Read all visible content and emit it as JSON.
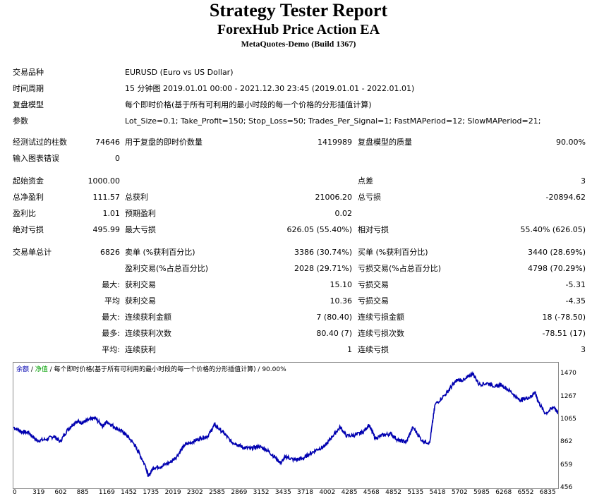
{
  "header": {
    "title": "Strategy Tester Report",
    "subtitle": "ForexHub Price Action EA",
    "build": "MetaQuotes-Demo (Build 1367)"
  },
  "settings": [
    {
      "label": "交易品种",
      "value": "EURUSD (Euro vs US Dollar)"
    },
    {
      "label": "时间周期",
      "value": "15 分钟图 2019.01.01 00:00 - 2021.12.30 23:45 (2019.01.01 - 2022.01.01)"
    },
    {
      "label": "复盘模型",
      "value": "每个即时价格(基于所有可利用的最小时段的每一个价格的分形插值计算)"
    },
    {
      "label": "参数",
      "value": "Lot_Size=0.1; Take_Profit=150; Stop_Loss=50; Trades_Per_Signal=1; FastMAPeriod=12; SlowMAPeriod=21;"
    }
  ],
  "stats": {
    "bars_label": "经测试过的柱数",
    "bars_value": "74646",
    "ticks_label": "用于复盘的即时价数量",
    "ticks_value": "1419989",
    "quality_label": "复盘模型的质量",
    "quality_value": "90.00%",
    "errors_label": "输入图表错误",
    "errors_value": "0",
    "deposit_label": "起始资金",
    "deposit_value": "1000.00",
    "spread_label": "点差",
    "spread_value": "3",
    "net_label": "总净盈利",
    "net_value": "111.57",
    "gross_profit_label": "总获利",
    "gross_profit_value": "21006.20",
    "gross_loss_label": "总亏损",
    "gross_loss_value": "-20894.62",
    "pf_label": "盈利比",
    "pf_value": "1.01",
    "expected_label": "预期盈利",
    "expected_value": "0.02",
    "abs_dd_label": "绝对亏损",
    "abs_dd_value": "495.99",
    "max_dd_label": "最大亏损",
    "max_dd_value": "626.05 (55.40%)",
    "rel_dd_label": "相对亏损",
    "rel_dd_value": "55.40% (626.05)",
    "trades_label": "交易单总计",
    "trades_value": "6826",
    "short_label": "卖单 (%获利百分比)",
    "short_value": "3386 (30.74%)",
    "long_label": "买单 (%获利百分比)",
    "long_value": "3440 (28.69%)",
    "profit_trades_label": "盈利交易(%占总百分比)",
    "profit_trades_value": "2028 (29.71%)",
    "loss_trades_label": "亏损交易(%占总百分比)",
    "loss_trades_value": "4798 (70.29%)",
    "largest_prefix": "最大:",
    "largest_profit_label": "获利交易",
    "largest_profit_value": "15.10",
    "largest_loss_label": "亏损交易",
    "largest_loss_value": "-5.31",
    "average_prefix": "平均",
    "avg_profit_label": "获利交易",
    "avg_profit_value": "10.36",
    "avg_loss_label": "亏损交易",
    "avg_loss_value": "-4.35",
    "max_prefix": "最大:",
    "max_cons_wins_label": "连续获利金额",
    "max_cons_wins_value": "7 (80.40)",
    "max_cons_losses_label": "连续亏损金额",
    "max_cons_losses_value": "18 (-78.50)",
    "maximal_prefix": "最多:",
    "maximal_cons_profit_label": "连续获利次数",
    "maximal_cons_profit_value": "80.40 (7)",
    "maximal_cons_loss_label": "连续亏损次数",
    "maximal_cons_loss_value": "-78.51 (17)",
    "avg2_prefix": "平均:",
    "avg_cons_wins_label": "连续获利",
    "avg_cons_wins_value": "1",
    "avg_cons_losses_label": "连续亏损",
    "avg_cons_losses_value": "3"
  },
  "chart_header": {
    "balance": "余额",
    "sep1": " / ",
    "equity": "净值",
    "rest": " / 每个即时价格(基于所有可利用的最小时段的每一个价格的分形插值计算) / 90.00%"
  },
  "chart_data": {
    "type": "line",
    "title": "",
    "xlabel": "",
    "ylabel": "",
    "ylim": [
      456,
      1573
    ],
    "xlim": [
      0,
      7000
    ],
    "y_ticks": [
      1470,
      1267,
      1065,
      862,
      659,
      456
    ],
    "x_ticks": [
      0,
      319,
      602,
      885,
      1169,
      1452,
      1735,
      2019,
      2302,
      2585,
      2869,
      3152,
      3435,
      3718,
      4002,
      4285,
      4568,
      4852,
      5135,
      5418,
      5702,
      5985,
      6268,
      6552,
      6835
    ],
    "series": [
      {
        "name": "余额",
        "color": "#0000b0",
        "x": [
          0,
          100,
          200,
          300,
          420,
          520,
          600,
          700,
          800,
          885,
          950,
          1050,
          1150,
          1200,
          1300,
          1400,
          1452,
          1550,
          1600,
          1700,
          1735,
          1800,
          1900,
          2019,
          2100,
          2200,
          2302,
          2400,
          2500,
          2585,
          2700,
          2800,
          2869,
          2950,
          3050,
          3152,
          3250,
          3350,
          3435,
          3500,
          3600,
          3718,
          3800,
          3900,
          4002,
          4100,
          4200,
          4285,
          4400,
          4500,
          4568,
          4650,
          4750,
          4852,
          4950,
          5050,
          5135,
          5250,
          5350,
          5418,
          5550,
          5650,
          5702,
          5800,
          5900,
          5985,
          6100,
          6200,
          6268,
          6400,
          6500,
          6552,
          6650,
          6700,
          6750,
          6835,
          6950,
          7000
        ],
        "values": [
          1000,
          960,
          950,
          880,
          890,
          920,
          870,
          980,
          1050,
          1040,
          1060,
          1080,
          1010,
          1050,
          1000,
          960,
          930,
          850,
          790,
          650,
          560,
          640,
          650,
          690,
          740,
          840,
          870,
          900,
          920,
          1020,
          950,
          870,
          850,
          820,
          810,
          830,
          800,
          740,
          680,
          740,
          710,
          720,
          760,
          800,
          830,
          920,
          1000,
          920,
          930,
          960,
          1020,
          900,
          930,
          940,
          880,
          870,
          1000,
          880,
          860,
          1200,
          1290,
          1380,
          1420,
          1420,
          1480,
          1380,
          1390,
          1360,
          1380,
          1310,
          1240,
          1250,
          1270,
          1310,
          1220,
          1120,
          1180,
          1120
        ]
      }
    ]
  }
}
